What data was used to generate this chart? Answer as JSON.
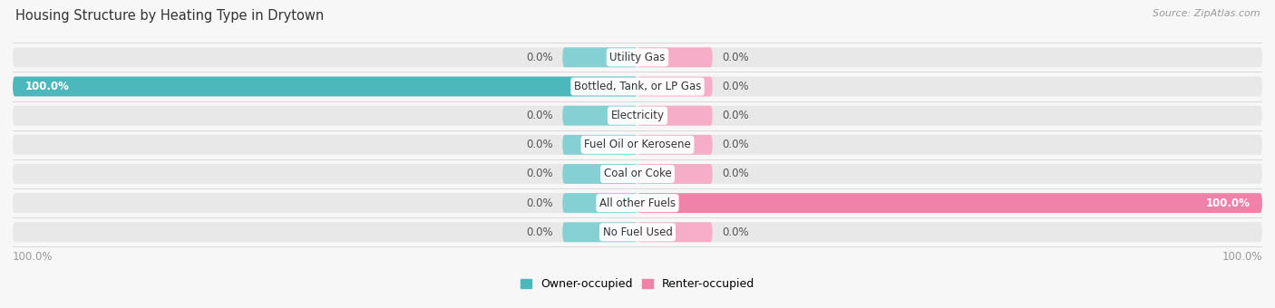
{
  "title": "Housing Structure by Heating Type in Drytown",
  "source": "Source: ZipAtlas.com",
  "categories": [
    "Utility Gas",
    "Bottled, Tank, or LP Gas",
    "Electricity",
    "Fuel Oil or Kerosene",
    "Coal or Coke",
    "All other Fuels",
    "No Fuel Used"
  ],
  "owner_values": [
    0.0,
    100.0,
    0.0,
    0.0,
    0.0,
    0.0,
    0.0
  ],
  "renter_values": [
    0.0,
    0.0,
    0.0,
    0.0,
    0.0,
    100.0,
    0.0
  ],
  "owner_color": "#4db8bb",
  "renter_color": "#f082aa",
  "owner_stub_color": "#85d0d3",
  "renter_stub_color": "#f5adc8",
  "background_color": "#f7f7f7",
  "bar_bg_color": "#e8e8e8",
  "separator_color": "#cccccc",
  "label_color": "#555555",
  "category_label_color": "#333333",
  "bottom_label_color": "#999999",
  "xlim": 100,
  "stub_size": 12,
  "bar_height": 0.68,
  "label_fontsize": 8.5,
  "title_fontsize": 10.5,
  "legend_fontsize": 9,
  "source_fontsize": 8
}
